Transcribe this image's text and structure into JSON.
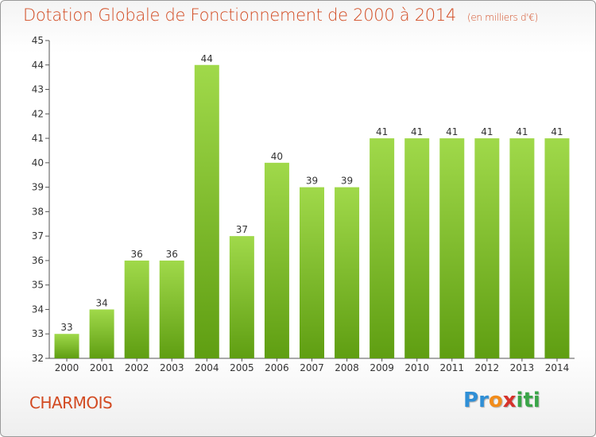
{
  "header": {
    "title": "Dotation Globale de Fonctionnement de 2000 à 2014",
    "unit": "(en milliers d'€)"
  },
  "footer": {
    "commune": "CHARMOIS",
    "brand": {
      "letters": [
        "P",
        "r",
        "o",
        "x",
        "i",
        "t",
        "i"
      ],
      "colors": [
        "#2f8fd6",
        "#2f8fd6",
        "#f28c1a",
        "#d6332c",
        "#3aa548",
        "#3aa548",
        "#3aa548"
      ]
    }
  },
  "colors": {
    "bar_light": "#a0d94a",
    "bar_dark": "#5f9e12",
    "axis": "#555555",
    "grid": "#dddddd",
    "text": "#333333"
  },
  "chart_data": {
    "type": "bar",
    "title": "Dotation Globale de Fonctionnement de 2000 à 2014",
    "unit": "(en milliers d'€)",
    "categories": [
      "2000",
      "2001",
      "2002",
      "2003",
      "2004",
      "2005",
      "2006",
      "2007",
      "2008",
      "2009",
      "2010",
      "2011",
      "2012",
      "2013",
      "2014"
    ],
    "values": [
      33,
      34,
      36,
      36,
      44,
      37,
      40,
      39,
      39,
      41,
      41,
      41,
      41,
      41,
      41
    ],
    "data_labels": [
      "33",
      "34",
      "36",
      "36",
      "44",
      "37",
      "40",
      "39",
      "39",
      "41",
      "41",
      "41",
      "41",
      "41",
      "41"
    ],
    "ylim": [
      32,
      45
    ],
    "yticks": [
      32,
      33,
      34,
      35,
      36,
      37,
      38,
      39,
      40,
      41,
      42,
      43,
      44,
      45
    ],
    "grid": false,
    "legend": "none"
  }
}
